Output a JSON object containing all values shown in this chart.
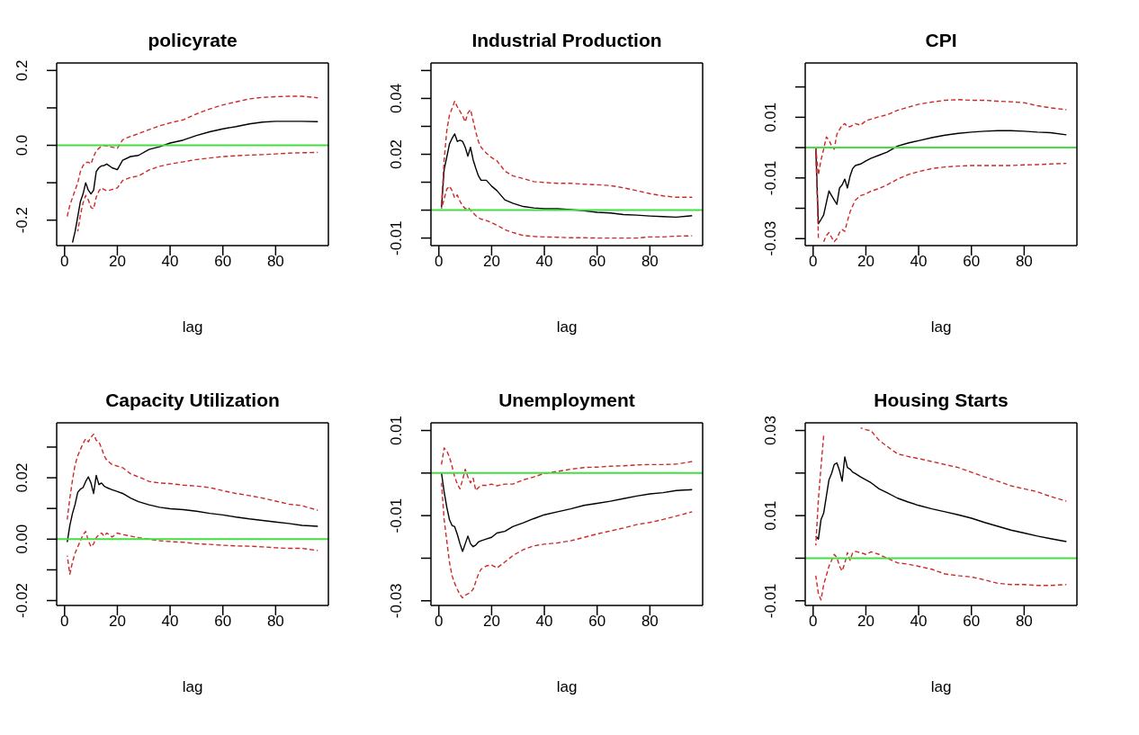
{
  "chart_data": [
    {
      "type": "line",
      "title": "policyrate",
      "xlabel": "lag",
      "x": [
        1,
        2,
        3,
        4,
        5,
        6,
        7,
        8,
        9,
        10,
        11,
        12,
        13,
        14,
        15,
        16,
        18,
        20,
        22,
        25,
        28,
        32,
        36,
        40,
        45,
        50,
        55,
        60,
        65,
        70,
        75,
        80,
        85,
        90,
        96
      ],
      "xlim": [
        -3,
        100
      ],
      "xticks": [
        0,
        20,
        40,
        60,
        80
      ],
      "ylim": [
        -0.268,
        0.22
      ],
      "yticks": [
        -0.2,
        {
          "value": -0.1,
          "label": null
        },
        {
          "value": 0,
          "label": "0.0"
        },
        {
          "value": 0.1,
          "label": null
        },
        0.2
      ],
      "series": [
        {
          "color": "#000000",
          "line_style": "solid",
          "values": [
            null,
            null,
            -0.26,
            -0.23,
            -0.19,
            -0.15,
            -0.13,
            -0.1,
            -0.12,
            -0.13,
            -0.12,
            -0.07,
            -0.06,
            -0.055,
            -0.054,
            -0.05,
            -0.06,
            -0.065,
            -0.04,
            -0.03,
            -0.027,
            -0.011,
            -0.004,
            0.006,
            0.014,
            0.026,
            0.036,
            0.044,
            0.05,
            0.057,
            0.062,
            0.064,
            0.064,
            0.064,
            0.063
          ]
        },
        {
          "color": "#cc2a2a",
          "line_style": "dashed",
          "values": [
            -0.19,
            -0.16,
            -0.14,
            -0.12,
            -0.1,
            -0.07,
            -0.054,
            -0.046,
            -0.045,
            -0.05,
            -0.03,
            -0.015,
            -0.008,
            -0.002,
            0,
            -0.002,
            -0.005,
            -0.008,
            0.015,
            0.024,
            0.031,
            0.042,
            0.052,
            0.06,
            0.068,
            0.084,
            0.097,
            0.108,
            0.116,
            0.124,
            0.128,
            0.13,
            0.131,
            0.131,
            0.127
          ]
        },
        {
          "color": "#cc2a2a",
          "line_style": "dashed",
          "values": [
            null,
            null,
            null,
            null,
            -0.23,
            -0.186,
            -0.154,
            -0.134,
            -0.146,
            -0.166,
            -0.17,
            -0.138,
            -0.122,
            -0.114,
            -0.118,
            -0.122,
            -0.118,
            -0.114,
            -0.094,
            -0.086,
            -0.082,
            -0.066,
            -0.056,
            -0.05,
            -0.044,
            -0.038,
            -0.034,
            -0.03,
            -0.028,
            -0.026,
            -0.025,
            -0.023,
            -0.021,
            -0.02,
            -0.019
          ]
        }
      ],
      "ref_lines": [
        {
          "axis": "y",
          "value": 0,
          "color": "#44dd44"
        }
      ]
    },
    {
      "type": "line",
      "title": "Industrial Production",
      "xlabel": "lag",
      "x": [
        1,
        2,
        3,
        4,
        5,
        6,
        7,
        8,
        9,
        10,
        11,
        12,
        13,
        14,
        15,
        16,
        18,
        20,
        22,
        25,
        28,
        32,
        36,
        40,
        45,
        50,
        55,
        60,
        65,
        70,
        75,
        80,
        85,
        90,
        96
      ],
      "xlim": [
        -3,
        100
      ],
      "xticks": [
        0,
        20,
        40,
        60,
        80
      ],
      "ylim": [
        -0.0127,
        0.0527
      ],
      "yticks": [
        -0.01,
        {
          "value": 0,
          "label": null
        },
        {
          "value": 0.01,
          "label": null
        },
        0.02,
        {
          "value": 0.03,
          "label": null
        },
        0.04,
        {
          "value": 0.05,
          "label": null
        }
      ],
      "series": [
        {
          "color": "#000000",
          "line_style": "solid",
          "values": [
            0.001,
            0.0145,
            0.019,
            0.0236,
            0.0257,
            0.0273,
            0.0246,
            0.025,
            0.0246,
            0.0225,
            0.0193,
            0.0225,
            0.018,
            0.015,
            0.0123,
            0.0107,
            0.0107,
            0.0086,
            0.007,
            0.0037,
            0.0025,
            0.0013,
            0.0008,
            0.0005,
            0.0005,
            0.0002,
            -0.0002,
            -0.0008,
            -0.001,
            -0.0016,
            -0.0018,
            -0.0021,
            -0.0023,
            -0.0025,
            -0.002
          ]
        },
        {
          "color": "#cc2a2a",
          "line_style": "dashed",
          "values": [
            0.002,
            0.018,
            0.0284,
            0.034,
            0.0364,
            0.039,
            0.037,
            0.0354,
            0.0338,
            0.0316,
            0.0348,
            0.036,
            0.032,
            0.028,
            0.0246,
            0.0225,
            0.0204,
            0.0188,
            0.0177,
            0.014,
            0.0123,
            0.0113,
            0.0102,
            0.0099,
            0.0096,
            0.0096,
            0.0093,
            0.0091,
            0.0088,
            0.008,
            0.007,
            0.0059,
            0.0051,
            0.0046,
            0.0046
          ]
        },
        {
          "color": "#cc2a2a",
          "line_style": "dashed",
          "values": [
            0.0005,
            0.004,
            0.0075,
            0.0086,
            0.007,
            0.0043,
            0.0054,
            0.0032,
            0.0016,
            0.0005,
            0.001,
            0,
            -0.001,
            -0.002,
            -0.0027,
            -0.0032,
            -0.0037,
            -0.0045,
            -0.0054,
            -0.007,
            -0.008,
            -0.0091,
            -0.0094,
            -0.0096,
            -0.0097,
            -0.0099,
            -0.0099,
            -0.01,
            -0.01,
            -0.01,
            -0.01,
            -0.0096,
            -0.0096,
            -0.0093,
            -0.0092
          ]
        }
      ],
      "ref_lines": [
        {
          "axis": "y",
          "value": 0,
          "color": "#44dd44"
        }
      ]
    },
    {
      "type": "line",
      "title": "CPI",
      "xlabel": "lag",
      "x": [
        1,
        2,
        3,
        4,
        5,
        6,
        7,
        8,
        9,
        10,
        11,
        12,
        13,
        14,
        15,
        16,
        18,
        20,
        22,
        25,
        28,
        32,
        36,
        40,
        45,
        50,
        55,
        60,
        65,
        70,
        75,
        80,
        85,
        90,
        96
      ],
      "xlim": [
        -3,
        100
      ],
      "xticks": [
        0,
        20,
        40,
        60,
        80
      ],
      "ylim": [
        -0.0323,
        0.0279
      ],
      "yticks": [
        -0.03,
        {
          "value": -0.02,
          "label": null
        },
        -0.01,
        {
          "value": 0,
          "label": null
        },
        0.01,
        {
          "value": 0.02,
          "label": null
        }
      ],
      "series": [
        {
          "color": "#000000",
          "line_style": "solid",
          "values": [
            0,
            -0.0251,
            -0.0237,
            -0.0222,
            -0.0182,
            -0.0143,
            -0.0158,
            -0.0173,
            -0.0187,
            -0.0133,
            -0.0123,
            -0.0104,
            -0.0133,
            -0.0094,
            -0.0069,
            -0.0059,
            -0.0054,
            -0.0044,
            -0.0035,
            -0.0025,
            -0.0015,
            0.0005,
            0.0015,
            0.0023,
            0.0033,
            0.0041,
            0.0047,
            0.0051,
            0.0054,
            0.0056,
            0.0056,
            0.0054,
            0.0051,
            0.0049,
            0.0042
          ]
        },
        {
          "color": "#cc2a2a",
          "line_style": "dashed",
          "values": [
            0,
            -0.009,
            -0.004,
            -0.0005,
            0.0035,
            0.0025,
            0.0005,
            -0.0005,
            0.0044,
            0.0059,
            0.0074,
            0.0079,
            0.0069,
            0.0069,
            0.0074,
            0.0079,
            0.0074,
            0.0089,
            0.0094,
            0.0102,
            0.0108,
            0.0123,
            0.0133,
            0.0143,
            0.015,
            0.0156,
            0.0158,
            0.0156,
            0.0156,
            0.0153,
            0.0151,
            0.0148,
            0.0138,
            0.0131,
            0.0125
          ]
        },
        {
          "color": "#cc2a2a",
          "line_style": "dashed",
          "values": [
            0,
            -0.03,
            null,
            -0.031,
            -0.029,
            -0.028,
            -0.0296,
            -0.031,
            -0.03,
            -0.028,
            -0.027,
            -0.0276,
            -0.0242,
            -0.0212,
            -0.0192,
            -0.0173,
            -0.0158,
            -0.0153,
            -0.0143,
            -0.0135,
            -0.0123,
            -0.0104,
            -0.0089,
            -0.0079,
            -0.0069,
            -0.0064,
            -0.0061,
            -0.0059,
            -0.0059,
            -0.0059,
            -0.0059,
            -0.0057,
            -0.0056,
            -0.0054,
            -0.0052
          ]
        }
      ],
      "ref_lines": [
        {
          "axis": "y",
          "value": 0,
          "color": "#44dd44"
        }
      ]
    },
    {
      "type": "line",
      "title": "Capacity Utilization",
      "xlabel": "lag",
      "x": [
        1,
        2,
        3,
        4,
        5,
        6,
        7,
        8,
        9,
        10,
        11,
        12,
        13,
        14,
        15,
        16,
        18,
        20,
        22,
        25,
        28,
        32,
        36,
        40,
        45,
        50,
        55,
        60,
        65,
        70,
        75,
        80,
        85,
        90,
        96
      ],
      "xlim": [
        -3,
        100
      ],
      "xticks": [
        0,
        20,
        40,
        60,
        80
      ],
      "ylim": [
        -0.0216,
        0.0379
      ],
      "yticks": [
        -0.02,
        {
          "value": -0.01,
          "label": null
        },
        {
          "value": 0,
          "label": "0.00"
        },
        {
          "value": 0.01,
          "label": null
        },
        0.02,
        {
          "value": 0.03,
          "label": null
        }
      ],
      "series": [
        {
          "color": "#000000",
          "line_style": "solid",
          "values": [
            -0.001,
            0.0045,
            0.0084,
            0.0114,
            0.0153,
            0.0163,
            0.0168,
            0.0188,
            0.0203,
            0.0183,
            0.0149,
            0.0208,
            0.0178,
            0.0183,
            0.0173,
            0.0168,
            0.0161,
            0.0155,
            0.0149,
            0.0134,
            0.0122,
            0.0112,
            0.0104,
            0.0099,
            0.0096,
            0.0091,
            0.0084,
            0.0079,
            0.0072,
            0.0066,
            0.0061,
            0.0056,
            0.0051,
            0.0045,
            0.0042
          ]
        },
        {
          "color": "#cc2a2a",
          "line_style": "dashed",
          "values": [
            0.0064,
            0.0134,
            0.0193,
            0.0243,
            0.0272,
            0.0292,
            0.0312,
            0.0327,
            0.0317,
            0.0332,
            0.0342,
            0.0322,
            0.0317,
            0.0297,
            0.0272,
            0.0257,
            0.0243,
            0.0238,
            0.0233,
            0.0213,
            0.0203,
            0.0188,
            0.0183,
            0.0181,
            0.0176,
            0.0173,
            0.0168,
            0.0158,
            0.0149,
            0.0142,
            0.0134,
            0.0124,
            0.0114,
            0.0109,
            0.0094
          ]
        },
        {
          "color": "#cc2a2a",
          "line_style": "dashed",
          "values": [
            -0.0054,
            -0.0114,
            -0.0074,
            -0.0045,
            -0.0025,
            -0.0005,
            0.0015,
            0.0025,
            -0.0005,
            -0.0025,
            -0.0015,
            0.0005,
            0.0015,
            0.002,
            0.001,
            0.002,
            0.0007,
            0.002,
            0.0015,
            0.001,
            0.0005,
            0,
            -0.0005,
            -0.0008,
            -0.001,
            -0.0015,
            -0.0017,
            -0.002,
            -0.0022,
            -0.0023,
            -0.0025,
            -0.0028,
            -0.003,
            -0.003,
            -0.0037
          ]
        }
      ],
      "ref_lines": [
        {
          "axis": "y",
          "value": 0,
          "color": "#44dd44"
        }
      ]
    },
    {
      "type": "line",
      "title": "Unemployment",
      "xlabel": "lag",
      "x": [
        1,
        2,
        3,
        4,
        5,
        6,
        7,
        8,
        9,
        10,
        11,
        12,
        13,
        14,
        15,
        16,
        18,
        20,
        22,
        25,
        28,
        32,
        36,
        40,
        45,
        50,
        55,
        60,
        65,
        70,
        75,
        80,
        85,
        90,
        96
      ],
      "xlim": [
        -3,
        100
      ],
      "xticks": [
        0,
        20,
        40,
        60,
        80
      ],
      "ylim": [
        -0.0311,
        0.0118
      ],
      "yticks": [
        -0.03,
        {
          "value": -0.02,
          "label": null
        },
        -0.01,
        {
          "value": 0,
          "label": null
        },
        0.01
      ],
      "series": [
        {
          "color": "#000000",
          "line_style": "solid",
          "values": [
            0,
            -0.0044,
            -0.008,
            -0.0109,
            -0.0123,
            -0.0126,
            -0.0144,
            -0.0166,
            -0.0184,
            -0.0166,
            -0.0148,
            -0.0166,
            -0.0173,
            -0.0169,
            -0.0162,
            -0.0159,
            -0.0155,
            -0.0151,
            -0.0141,
            -0.0137,
            -0.0126,
            -0.0117,
            -0.0107,
            -0.0098,
            -0.0091,
            -0.0084,
            -0.0076,
            -0.0071,
            -0.0066,
            -0.006,
            -0.0054,
            -0.0049,
            -0.0046,
            -0.0041,
            -0.0039
          ]
        },
        {
          "color": "#cc2a2a",
          "line_style": "dashed",
          "values": [
            0.002,
            0.0059,
            0.0052,
            0.0038,
            0.0016,
            -0.0009,
            -0.0026,
            -0.0037,
            -0.0016,
            0.0009,
            -0.0009,
            -0.0023,
            -0.0012,
            -0.0041,
            -0.0034,
            -0.0029,
            -0.0029,
            -0.0026,
            -0.003,
            -0.0026,
            -0.0026,
            -0.0016,
            -0.0009,
            -0.0001,
            0.0004,
            0.0009,
            0.0013,
            0.0014,
            0.0016,
            0.0017,
            0.0019,
            0.002,
            0.002,
            0.0021,
            0.0027
          ]
        },
        {
          "color": "#cc2a2a",
          "line_style": "dashed",
          "values": [
            -0.0023,
            -0.0109,
            -0.0159,
            -0.0209,
            -0.0241,
            -0.0259,
            -0.0273,
            -0.0286,
            -0.0293,
            -0.0287,
            -0.0284,
            -0.028,
            -0.0273,
            -0.0255,
            -0.0237,
            -0.0226,
            -0.0218,
            -0.0216,
            -0.0223,
            -0.0209,
            -0.0194,
            -0.018,
            -0.0171,
            -0.0167,
            -0.0164,
            -0.0159,
            -0.0151,
            -0.0143,
            -0.0136,
            -0.0129,
            -0.0121,
            -0.0116,
            -0.0109,
            -0.0101,
            -0.0091
          ]
        }
      ],
      "ref_lines": [
        {
          "axis": "y",
          "value": 0,
          "color": "#44dd44"
        }
      ]
    },
    {
      "type": "line",
      "title": "Housing Starts",
      "xlabel": "lag",
      "x": [
        1,
        2,
        3,
        4,
        5,
        6,
        7,
        8,
        9,
        10,
        11,
        12,
        13,
        14,
        15,
        16,
        18,
        20,
        22,
        25,
        28,
        32,
        36,
        40,
        45,
        50,
        55,
        60,
        65,
        70,
        75,
        80,
        85,
        90,
        96
      ],
      "xlim": [
        -3,
        100
      ],
      "xticks": [
        0,
        20,
        40,
        60,
        80
      ],
      "ylim": [
        -0.0111,
        0.0318
      ],
      "yticks": [
        -0.01,
        {
          "value": 0,
          "label": null
        },
        0.01,
        {
          "value": 0.02,
          "label": null
        },
        0.03
      ],
      "series": [
        {
          "color": "#000000",
          "line_style": "solid",
          "values": [
            0.0052,
            0.0045,
            0.0091,
            0.0106,
            0.0145,
            0.0184,
            0.0199,
            0.022,
            0.0224,
            0.0206,
            0.0181,
            0.0238,
            0.0213,
            0.0209,
            0.0202,
            0.0199,
            0.0191,
            0.0184,
            0.0177,
            0.0163,
            0.0154,
            0.0141,
            0.0132,
            0.0124,
            0.0116,
            0.0109,
            0.0102,
            0.0094,
            0.0084,
            0.0075,
            0.0066,
            0.0059,
            0.0052,
            0.0046,
            0.0039
          ]
        },
        {
          "color": "#cc2a2a",
          "line_style": "dashed",
          "values": [
            0.003,
            0.0138,
            0.0216,
            0.0288,
            null,
            null,
            null,
            null,
            null,
            null,
            null,
            null,
            null,
            null,
            null,
            null,
            0.0306,
            0.0302,
            0.0299,
            0.0277,
            0.0263,
            0.0245,
            0.0239,
            0.0234,
            0.0227,
            0.022,
            0.0213,
            0.0202,
            0.0191,
            0.0181,
            0.017,
            0.0163,
            0.0156,
            0.0145,
            0.0134
          ]
        },
        {
          "color": "#cc2a2a",
          "line_style": "dashed",
          "values": [
            -0.0041,
            -0.0084,
            -0.0098,
            -0.0062,
            -0.0041,
            -0.0019,
            -0.0005,
            0.0009,
            0.0002,
            -0.0019,
            -0.003,
            -0.0012,
            0.0013,
            -0.0005,
            0.0013,
            0.0016,
            0.0013,
            0.0009,
            0.0015,
            0.0009,
            0,
            -0.0011,
            -0.0014,
            -0.0019,
            -0.0026,
            -0.0037,
            -0.0041,
            -0.0044,
            -0.0051,
            -0.0059,
            -0.0062,
            -0.0062,
            -0.0064,
            -0.0064,
            -0.0062
          ]
        }
      ],
      "ref_lines": [
        {
          "axis": "y",
          "value": 0,
          "color": "#44dd44"
        }
      ]
    }
  ]
}
